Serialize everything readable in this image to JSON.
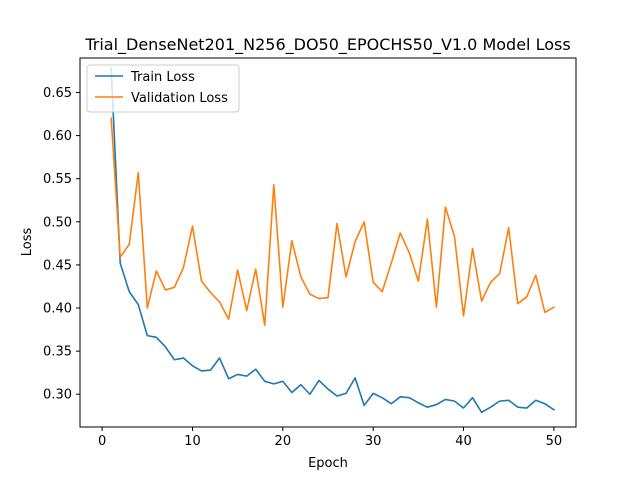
{
  "chart_data": {
    "type": "line",
    "title": "Trial_DenseNet201_N256_DO50_EPOCHS50_V1.0 Model Loss",
    "xlabel": "Epoch",
    "ylabel": "Loss",
    "xlim": [
      -2.45,
      52.45
    ],
    "ylim": [
      0.262,
      0.69
    ],
    "xticks": [
      0,
      10,
      20,
      30,
      40,
      50
    ],
    "yticks": [
      0.3,
      0.35,
      0.4,
      0.45,
      0.5,
      0.55,
      0.6,
      0.65
    ],
    "ytick_labels": [
      "0.30",
      "0.35",
      "0.40",
      "0.45",
      "0.50",
      "0.55",
      "0.60",
      "0.65"
    ],
    "grid": false,
    "legend_position": "top-left",
    "x": [
      1,
      2,
      3,
      4,
      5,
      6,
      7,
      8,
      9,
      10,
      11,
      12,
      13,
      14,
      15,
      16,
      17,
      18,
      19,
      20,
      21,
      22,
      23,
      24,
      25,
      26,
      27,
      28,
      29,
      30,
      31,
      32,
      33,
      34,
      35,
      36,
      37,
      38,
      39,
      40,
      41,
      42,
      43,
      44,
      45,
      46,
      47,
      48,
      49,
      50
    ],
    "series": [
      {
        "name": "Train Loss",
        "color": "#1f77b4",
        "values": [
          0.678,
          0.452,
          0.419,
          0.404,
          0.368,
          0.366,
          0.355,
          0.34,
          0.342,
          0.333,
          0.327,
          0.328,
          0.342,
          0.318,
          0.323,
          0.321,
          0.329,
          0.315,
          0.312,
          0.315,
          0.302,
          0.311,
          0.3,
          0.316,
          0.306,
          0.298,
          0.301,
          0.319,
          0.287,
          0.301,
          0.296,
          0.289,
          0.297,
          0.296,
          0.29,
          0.285,
          0.288,
          0.294,
          0.292,
          0.284,
          0.296,
          0.279,
          0.285,
          0.292,
          0.293,
          0.285,
          0.284,
          0.293,
          0.289,
          0.282
        ]
      },
      {
        "name": "Validation Loss",
        "color": "#ff7f0e",
        "values": [
          0.62,
          0.459,
          0.474,
          0.557,
          0.4,
          0.443,
          0.421,
          0.424,
          0.447,
          0.495,
          0.431,
          0.418,
          0.407,
          0.387,
          0.444,
          0.397,
          0.445,
          0.38,
          0.543,
          0.401,
          0.478,
          0.436,
          0.416,
          0.411,
          0.412,
          0.498,
          0.436,
          0.477,
          0.5,
          0.43,
          0.419,
          0.452,
          0.487,
          0.464,
          0.431,
          0.503,
          0.401,
          0.517,
          0.483,
          0.391,
          0.469,
          0.408,
          0.43,
          0.44,
          0.493,
          0.405,
          0.413,
          0.438,
          0.395,
          0.401
        ]
      }
    ]
  }
}
